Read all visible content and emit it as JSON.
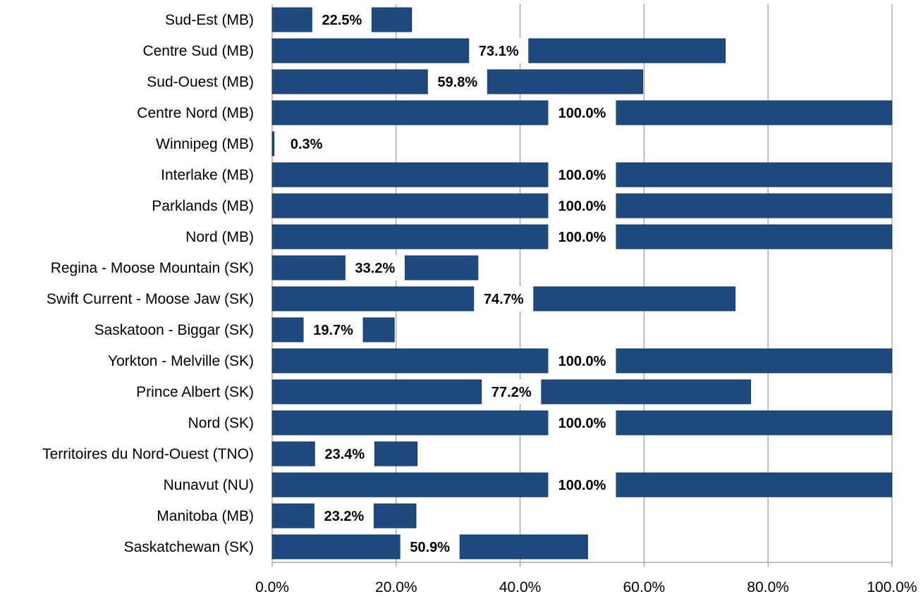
{
  "chart_data": {
    "type": "bar",
    "orientation": "horizontal",
    "title": "",
    "xlabel": "",
    "ylabel": "",
    "xlim": [
      0,
      100
    ],
    "x_ticks": [
      "0.0%",
      "20.0%",
      "40.0%",
      "60.0%",
      "80.0%",
      "100.0%"
    ],
    "grid": "vertical",
    "bar_color": "#1f497d",
    "categories": [
      "Sud-Est (MB)",
      "Centre Sud (MB)",
      "Sud-Ouest (MB)",
      "Centre Nord (MB)",
      "Winnipeg (MB)",
      "Interlake (MB)",
      "Parklands (MB)",
      "Nord (MB)",
      "Regina - Moose Mountain (SK)",
      "Swift Current - Moose Jaw (SK)",
      "Saskatoon - Biggar (SK)",
      "Yorkton - Melville (SK)",
      "Prince Albert (SK)",
      "Nord (SK)",
      "Territoires du Nord-Ouest (TNO)",
      "Nunavut (NU)",
      "Manitoba (MB)",
      "Saskatchewan (SK)"
    ],
    "values": [
      22.5,
      73.1,
      59.8,
      100.0,
      0.3,
      100.0,
      100.0,
      100.0,
      33.2,
      74.7,
      19.7,
      100.0,
      77.2,
      100.0,
      23.4,
      100.0,
      23.2,
      50.9
    ],
    "data_labels": [
      "22.5%",
      "73.1%",
      "59.8%",
      "100.0%",
      "0.3%",
      "100.0%",
      "100.0%",
      "100.0%",
      "33.2%",
      "74.7%",
      "19.7%",
      "100.0%",
      "77.2%",
      "100.0%",
      "23.4%",
      "100.0%",
      "23.2%",
      "50.9%"
    ]
  }
}
